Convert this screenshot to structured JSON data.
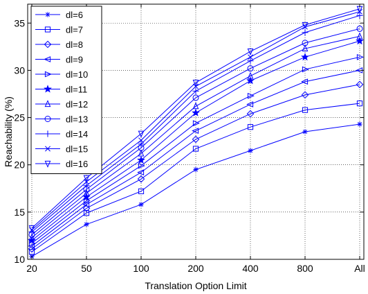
{
  "chart_data": {
    "type": "line",
    "title": "",
    "xlabel": "Translation Option Limit",
    "ylabel": "Reachability (%)",
    "categories": [
      "20",
      "50",
      "100",
      "200",
      "400",
      "800",
      "All"
    ],
    "yticks": [
      "10",
      "15",
      "20",
      "25",
      "30",
      "35"
    ],
    "ylim": [
      10,
      37
    ],
    "grid": true,
    "legend_position": "top-left",
    "line_color": "#0000ff",
    "series": [
      {
        "name": "dl=6",
        "marker": "asterisk",
        "values": [
          10.3,
          13.7,
          15.8,
          19.5,
          21.5,
          23.5,
          24.3
        ]
      },
      {
        "name": "dl=7",
        "marker": "square",
        "values": [
          10.8,
          14.9,
          17.2,
          21.7,
          24.0,
          25.8,
          26.5
        ]
      },
      {
        "name": "dl=8",
        "marker": "diamond",
        "values": [
          11.1,
          15.4,
          18.5,
          22.7,
          25.4,
          27.4,
          28.5
        ]
      },
      {
        "name": "dl=9",
        "marker": "triangle-left",
        "values": [
          11.4,
          15.8,
          19.2,
          23.6,
          26.4,
          28.8,
          30.0
        ]
      },
      {
        "name": "dl=10",
        "marker": "triangle-right",
        "values": [
          11.7,
          16.2,
          19.9,
          24.4,
          27.3,
          30.1,
          31.4
        ]
      },
      {
        "name": "dl=11",
        "marker": "star",
        "values": [
          12.0,
          16.6,
          20.5,
          25.5,
          28.9,
          31.4,
          33.1
        ]
      },
      {
        "name": "dl=12",
        "marker": "triangle-up",
        "values": [
          12.3,
          17.0,
          21.2,
          26.2,
          29.4,
          32.3,
          33.6
        ]
      },
      {
        "name": "dl=13",
        "marker": "circle",
        "values": [
          12.6,
          17.4,
          21.8,
          27.1,
          30.2,
          32.9,
          34.4
        ]
      },
      {
        "name": "dl=14",
        "marker": "plus",
        "values": [
          12.9,
          17.8,
          22.2,
          27.8,
          31.0,
          34.0,
          35.8
        ]
      },
      {
        "name": "dl=15",
        "marker": "cross",
        "values": [
          13.1,
          18.2,
          22.6,
          28.3,
          31.4,
          34.6,
          36.2
        ]
      },
      {
        "name": "dl=16",
        "marker": "triangle-down",
        "values": [
          13.3,
          18.6,
          23.3,
          28.7,
          32.0,
          34.8,
          36.5
        ]
      }
    ]
  }
}
